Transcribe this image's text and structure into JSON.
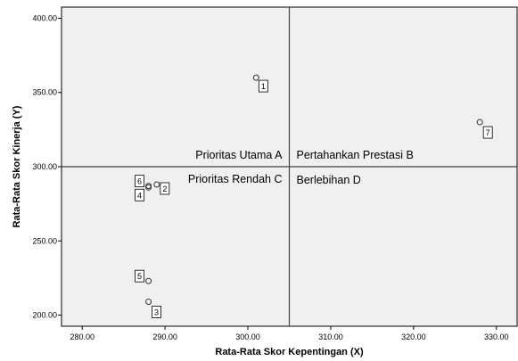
{
  "chart_data": {
    "type": "scatter",
    "title": "",
    "xlabel": "Rata-Rata Skor Kepentingan (X)",
    "ylabel": "Rata-Rata Skor Kinerja (Y)",
    "xlim": [
      277.5,
      332.5
    ],
    "ylim": [
      192.5,
      407.5
    ],
    "x_ticks": [
      280,
      290,
      300,
      310,
      320,
      330
    ],
    "y_ticks": [
      200,
      250,
      300,
      350,
      400
    ],
    "x_tick_labels": [
      "280.00",
      "290.00",
      "300.00",
      "310.00",
      "320.00",
      "330.00"
    ],
    "y_tick_labels": [
      "200.00",
      "250.00",
      "300.00",
      "350.00",
      "400.00"
    ],
    "reference_lines": {
      "x": 305.0,
      "y": 300.0
    },
    "quadrant_labels": {
      "A": "Prioritas Utama A",
      "B": "Pertahankan Prestasi B",
      "C": "Prioritas Rendah C",
      "D": "Berlebihan D"
    },
    "points": [
      {
        "label": "1",
        "x": 301,
        "y": 360
      },
      {
        "label": "2",
        "x": 289,
        "y": 288
      },
      {
        "label": "3",
        "x": 288,
        "y": 209
      },
      {
        "label": "4",
        "x": 288,
        "y": 286
      },
      {
        "label": "5",
        "x": 288,
        "y": 223
      },
      {
        "label": "6",
        "x": 288,
        "y": 287
      },
      {
        "label": "7",
        "x": 328,
        "y": 330
      }
    ],
    "grid": false,
    "legend": "none"
  }
}
